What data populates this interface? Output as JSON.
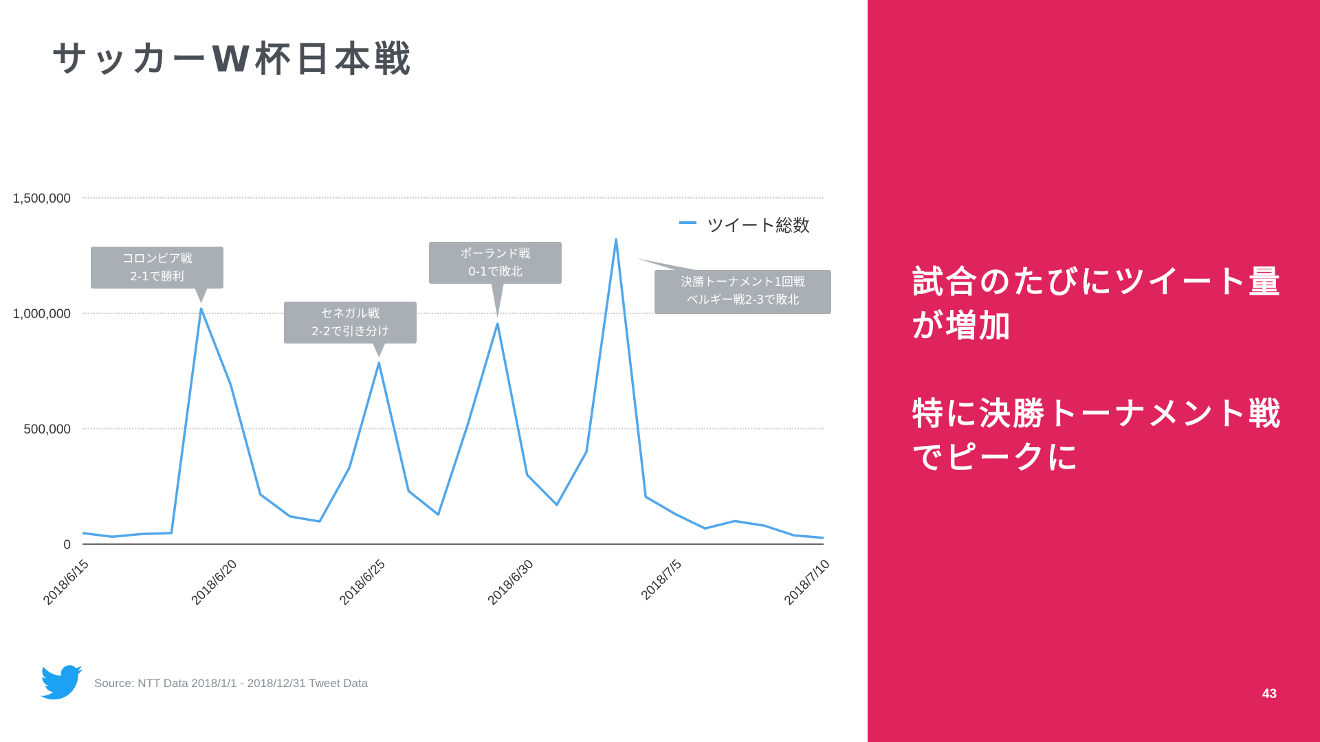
{
  "slide": {
    "title": "サッカーW杯日本戦",
    "message_lines": [
      "試合のたびにツイート量が増加",
      "特に決勝トーナメント戦でピークに"
    ],
    "page_number": "43",
    "source": "Source: NTT Data 2018/1/1 - 2018/12/31 Tweet Data"
  },
  "colors": {
    "accent": "#df235d",
    "line": "#52a7ea",
    "callout": "#a9afb5",
    "title_text": "#4a4f55"
  },
  "icons": {
    "logo": "twitter-bird-icon"
  },
  "chart_data": {
    "type": "line",
    "title": "",
    "xlabel": "",
    "ylabel": "",
    "ylim": [
      0,
      1500000
    ],
    "yticks": [
      0,
      500000,
      1000000,
      1500000
    ],
    "ytick_labels": [
      "0",
      "500,000",
      "1,000,000",
      "1,500,000"
    ],
    "xtick_labels": [
      "2018/6/15",
      "2018/6/20",
      "2018/6/25",
      "2018/6/30",
      "2018/7/5",
      "2018/7/10"
    ],
    "grid": true,
    "legend_position": "top-right",
    "x": [
      "2018/6/15",
      "2018/6/16",
      "2018/6/17",
      "2018/6/18",
      "2018/6/19",
      "2018/6/20",
      "2018/6/21",
      "2018/6/22",
      "2018/6/23",
      "2018/6/24",
      "2018/6/25",
      "2018/6/26",
      "2018/6/27",
      "2018/6/28",
      "2018/6/29",
      "2018/6/30",
      "2018/7/1",
      "2018/7/2",
      "2018/7/3",
      "2018/7/4",
      "2018/7/5",
      "2018/7/6",
      "2018/7/7",
      "2018/7/8",
      "2018/7/9",
      "2018/7/10"
    ],
    "series": [
      {
        "name": "ツイート総数",
        "values": [
          48000,
          32000,
          44000,
          48000,
          1020000,
          690000,
          215000,
          120000,
          98000,
          330000,
          785000,
          230000,
          128000,
          520000,
          955000,
          300000,
          170000,
          400000,
          1320000,
          205000,
          130000,
          68000,
          100000,
          80000,
          38000,
          27000
        ]
      }
    ],
    "annotations": [
      {
        "x": "2018/6/19",
        "lines": [
          "コロンビア戦",
          "2-1で勝利"
        ]
      },
      {
        "x": "2018/6/25",
        "lines": [
          "セネガル戦",
          "2-2で引き分け"
        ]
      },
      {
        "x": "2018/6/29",
        "lines": [
          "ポーランド戦",
          "0-1で敗北"
        ]
      },
      {
        "x": "2018/7/3",
        "lines": [
          "決勝トーナメント1回戦",
          "ベルギー戦2-3で敗北"
        ]
      }
    ]
  }
}
